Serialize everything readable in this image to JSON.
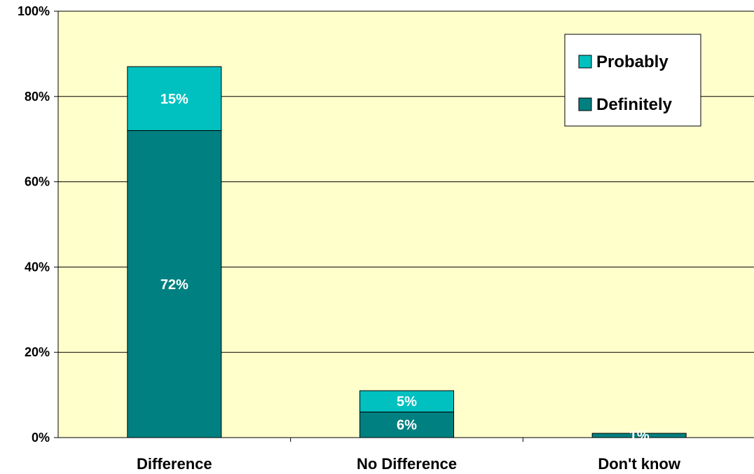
{
  "chart_data": {
    "type": "bar",
    "stacked": true,
    "categories": [
      "Difference",
      "No Difference",
      "Don't know"
    ],
    "series": [
      {
        "name": "Definitely",
        "values": [
          72,
          6,
          1
        ],
        "labels": [
          "72%",
          "6%",
          "1%"
        ],
        "color": "#008080"
      },
      {
        "name": "Probably",
        "values": [
          15,
          5,
          0
        ],
        "labels": [
          "15%",
          "5%",
          ""
        ],
        "color": "#00C0C0"
      }
    ],
    "ylim": [
      0,
      100
    ],
    "yticks": [
      "0%",
      "20%",
      "40%",
      "60%",
      "80%",
      "100%"
    ],
    "grid": true,
    "plot_background": "#FFFFCC",
    "legend": {
      "position": "top-right",
      "order": [
        "Probably",
        "Definitely"
      ]
    }
  }
}
